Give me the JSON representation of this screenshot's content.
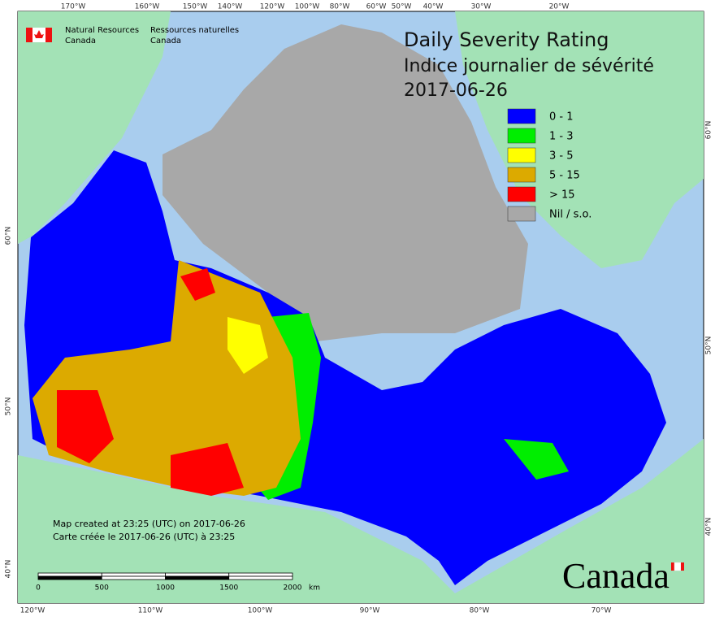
{
  "header": {
    "org_en": [
      "Natural Resources",
      "Canada"
    ],
    "org_fr": [
      "Ressources naturelles",
      "Canada"
    ]
  },
  "title": [
    "Daily Severity Rating",
    "Indice journalier de sévérité",
    "2017-06-26"
  ],
  "legend": [
    {
      "label": "0 - 1",
      "color": "#0000ff"
    },
    {
      "label": "1 - 3",
      "color": "#00ee00"
    },
    {
      "label": "3 - 5",
      "color": "#ffff00"
    },
    {
      "label": "5 - 15",
      "color": "#dcaa00"
    },
    {
      "label": "> 15",
      "color": "#ff0000"
    },
    {
      "label": "Nil / s.o.",
      "color": "#a8a8a8"
    }
  ],
  "graticule": {
    "top": [
      "170°W",
      "160°W",
      "150°W",
      "140°W",
      "120°W",
      "100°W",
      "80°W",
      "60°W",
      "50°W",
      "40°W",
      "30°W",
      "20°W"
    ],
    "bottom": [
      "120°W",
      "110°W",
      "100°W",
      "90°W",
      "80°W",
      "70°W"
    ],
    "left": [
      "60°N",
      "50°N",
      "40°N"
    ],
    "right": [
      "60°N",
      "50°N",
      "40°N"
    ]
  },
  "notes": [
    "Map created at 23:25 (UTC) on 2017-06-26",
    "Carte créée le 2017-06-26 (UTC) à 23:25"
  ],
  "scale_bar": {
    "labels": [
      "0",
      "500",
      "1000",
      "1500",
      "2000"
    ],
    "unit": "km"
  },
  "wordmark": "Canada"
}
